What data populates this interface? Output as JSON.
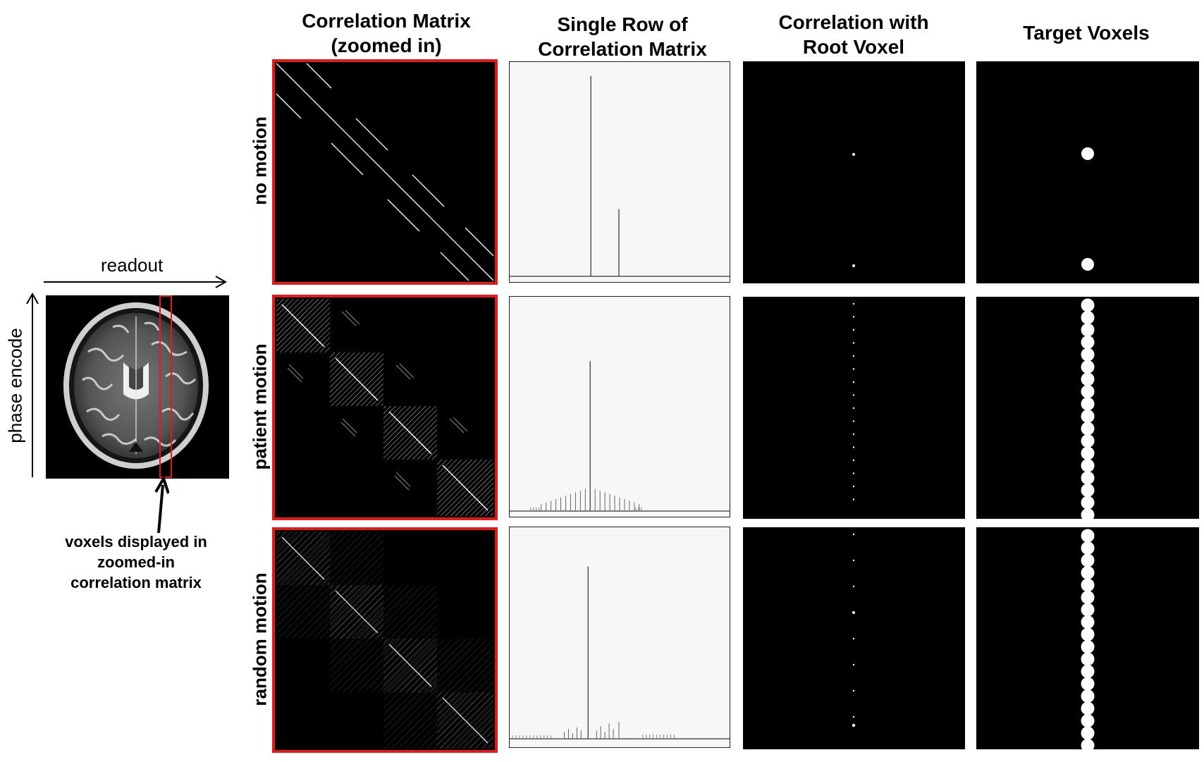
{
  "figure": {
    "column_titles": [
      "Correlation Matrix\n(zoomed in)",
      "Single Row of\nCorrelation Matrix",
      "Correlation with\nRoot Voxel",
      "Target Voxels"
    ],
    "row_labels": [
      "no motion",
      "patient motion",
      "random motion"
    ],
    "brain_inset": {
      "readout_label": "readout",
      "phase_label": "phase encode",
      "annotation": "voxels displayed in\nzoomed-in\ncorrelation matrix"
    }
  },
  "colors": {
    "highlight": "#e11a1a",
    "panel_black": "#000000",
    "plot_bg": "#f7f7f7"
  }
}
